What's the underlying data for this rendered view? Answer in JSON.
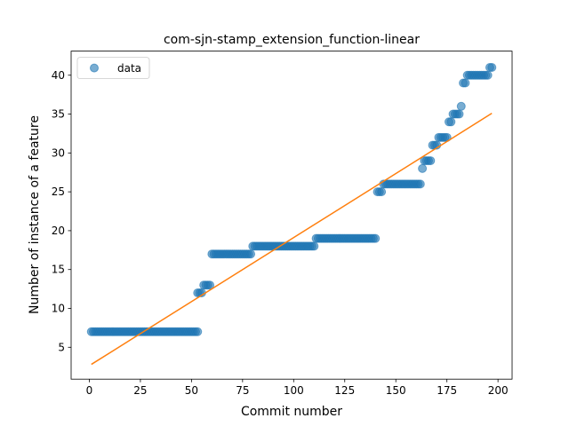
{
  "chart_data": {
    "type": "scatter",
    "title": "com-sjn-stamp_extension_function-linear",
    "xlabel": "Commit number",
    "ylabel": "Number of instance of a feature",
    "xlim": [
      -8.9,
      206.9
    ],
    "ylim": [
      0.9,
      43.1
    ],
    "xticks": [
      0,
      25,
      50,
      75,
      100,
      125,
      150,
      175,
      200
    ],
    "yticks": [
      5,
      10,
      15,
      20,
      25,
      30,
      35,
      40
    ],
    "legend": {
      "position": "top-left",
      "entries": [
        "data"
      ]
    },
    "grid": false,
    "colors": {
      "data": "#1f77b4",
      "fit": "#ff7f0e"
    },
    "segments": [
      {
        "x_from": 1,
        "x_to": 53,
        "y": 7
      },
      {
        "x_from": 53,
        "x_to": 55,
        "y": 12
      },
      {
        "x_from": 56,
        "x_to": 59,
        "y": 13
      },
      {
        "x_from": 60,
        "x_to": 79,
        "y": 17
      },
      {
        "x_from": 80,
        "x_to": 110,
        "y": 18
      },
      {
        "x_from": 111,
        "x_to": 140,
        "y": 19
      },
      {
        "x_from": 141,
        "x_to": 143,
        "y": 25
      },
      {
        "x_from": 144,
        "x_to": 162,
        "y": 26
      },
      {
        "x_from": 163,
        "x_to": 163,
        "y": 28
      },
      {
        "x_from": 164,
        "x_to": 167,
        "y": 29
      },
      {
        "x_from": 168,
        "x_to": 170,
        "y": 31
      },
      {
        "x_from": 171,
        "x_to": 175,
        "y": 32
      },
      {
        "x_from": 176,
        "x_to": 177,
        "y": 34
      },
      {
        "x_from": 178,
        "x_to": 181,
        "y": 35
      },
      {
        "x_from": 182,
        "x_to": 182,
        "y": 36
      },
      {
        "x_from": 183,
        "x_to": 184,
        "y": 39
      },
      {
        "x_from": 185,
        "x_to": 195,
        "y": 40
      },
      {
        "x_from": 196,
        "x_to": 197,
        "y": 41
      }
    ],
    "fit_line": {
      "x": [
        1,
        197
      ],
      "y": [
        2.8,
        35.1
      ]
    }
  }
}
